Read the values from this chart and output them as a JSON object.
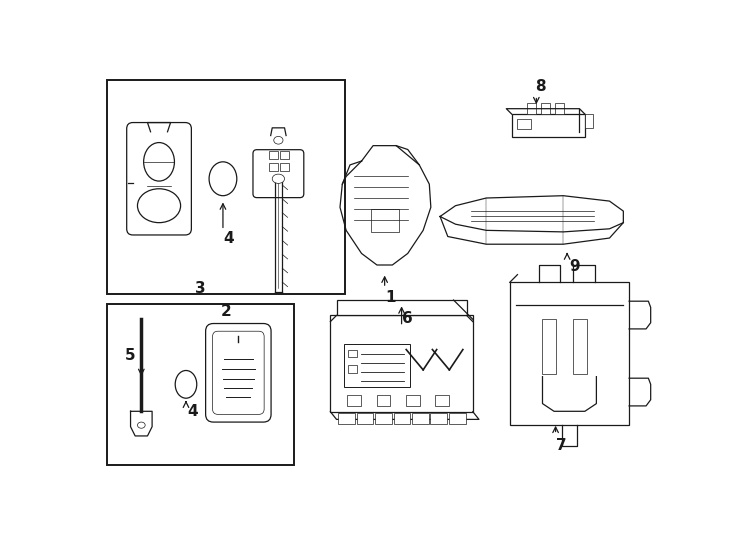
{
  "bg_color": "#ffffff",
  "line_color": "#1a1a1a",
  "lw": 0.9,
  "figsize": [
    7.34,
    5.4
  ],
  "dpi": 100,
  "xlim": [
    0,
    734
  ],
  "ylim": [
    0,
    540
  ]
}
